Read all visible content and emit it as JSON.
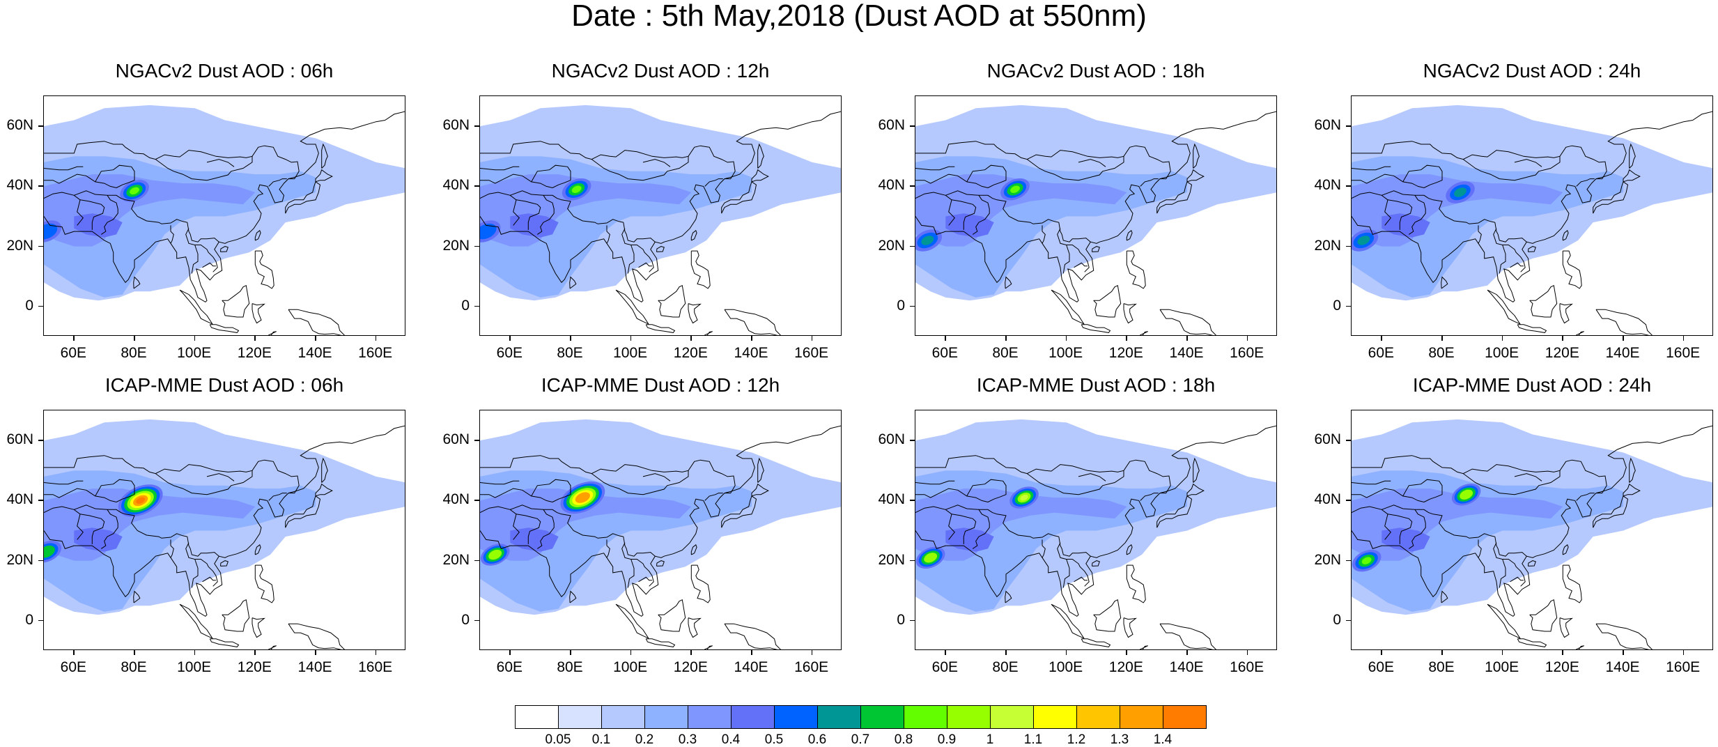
{
  "title": "Date : 5th May,2018 (Dust AOD at 550nm)",
  "map": {
    "lon_range": [
      50,
      170
    ],
    "lat_range": [
      -10,
      70
    ],
    "lon_ticks": [
      {
        "value": 60,
        "label": "60E"
      },
      {
        "value": 80,
        "label": "80E"
      },
      {
        "value": 100,
        "label": "100E"
      },
      {
        "value": 120,
        "label": "120E"
      },
      {
        "value": 140,
        "label": "140E"
      },
      {
        "value": 160,
        "label": "160E"
      }
    ],
    "lat_ticks": [
      {
        "value": 60,
        "label": "60N"
      },
      {
        "value": 40,
        "label": "40N"
      },
      {
        "value": 20,
        "label": "20N"
      },
      {
        "value": 0,
        "label": "0"
      }
    ]
  },
  "panels": [
    {
      "title": "NGACv2 Dust AOD : 06h",
      "model": "NGACv2",
      "hour": "06h",
      "hotspots": [
        {
          "lon": 80,
          "lat": 38.5,
          "aod": 0.8
        },
        {
          "lon": 51,
          "lat": 25,
          "aod": 0.5
        }
      ]
    },
    {
      "title": "NGACv2 Dust AOD : 12h",
      "model": "NGACv2",
      "hour": "12h",
      "hotspots": [
        {
          "lon": 82,
          "lat": 39,
          "aod": 0.8
        },
        {
          "lon": 52,
          "lat": 25,
          "aod": 0.5
        }
      ]
    },
    {
      "title": "NGACv2 Dust AOD : 18h",
      "model": "NGACv2",
      "hour": "18h",
      "hotspots": [
        {
          "lon": 83,
          "lat": 39,
          "aod": 0.8
        },
        {
          "lon": 54,
          "lat": 22,
          "aod": 0.6
        }
      ]
    },
    {
      "title": "NGACv2 Dust AOD : 24h",
      "model": "NGACv2",
      "hour": "24h",
      "hotspots": [
        {
          "lon": 86,
          "lat": 38,
          "aod": 0.6
        },
        {
          "lon": 54,
          "lat": 22,
          "aod": 0.6
        }
      ]
    },
    {
      "title": "ICAP-MME Dust AOD : 06h",
      "model": "ICAP-MME",
      "hour": "06h",
      "hotspots": [
        {
          "lon": 82,
          "lat": 40,
          "aod": 1.4
        },
        {
          "lon": 51,
          "lat": 23,
          "aod": 0.7
        }
      ]
    },
    {
      "title": "ICAP-MME Dust AOD : 12h",
      "model": "ICAP-MME",
      "hour": "12h",
      "hotspots": [
        {
          "lon": 84,
          "lat": 41,
          "aod": 1.3
        },
        {
          "lon": 55,
          "lat": 22,
          "aod": 0.9
        }
      ]
    },
    {
      "title": "ICAP-MME Dust AOD : 18h",
      "model": "ICAP-MME",
      "hour": "18h",
      "hotspots": [
        {
          "lon": 86,
          "lat": 41,
          "aod": 1.0
        },
        {
          "lon": 55,
          "lat": 21,
          "aod": 0.9
        }
      ]
    },
    {
      "title": "ICAP-MME Dust AOD : 24h",
      "model": "ICAP-MME",
      "hour": "24h",
      "hotspots": [
        {
          "lon": 88,
          "lat": 42,
          "aod": 0.9
        },
        {
          "lon": 55,
          "lat": 20,
          "aod": 0.8
        }
      ]
    }
  ],
  "colorbar": {
    "colors": [
      "#ffffff",
      "#d6e2ff",
      "#b5c9ff",
      "#8eb2ff",
      "#7f96ff",
      "#6370f8",
      "#0063ff",
      "#009696",
      "#00c633",
      "#63ff00",
      "#96ff00",
      "#c6ff33",
      "#ffff00",
      "#ffc600",
      "#ffa000",
      "#ff7c00",
      "#ff1900"
    ],
    "labels": [
      "0.05",
      "0.1",
      "0.2",
      "0.3",
      "0.4",
      "0.5",
      "0.6",
      "0.7",
      "0.8",
      "0.9",
      "1",
      "1.1",
      "1.2",
      "1.3",
      "1.4"
    ]
  }
}
